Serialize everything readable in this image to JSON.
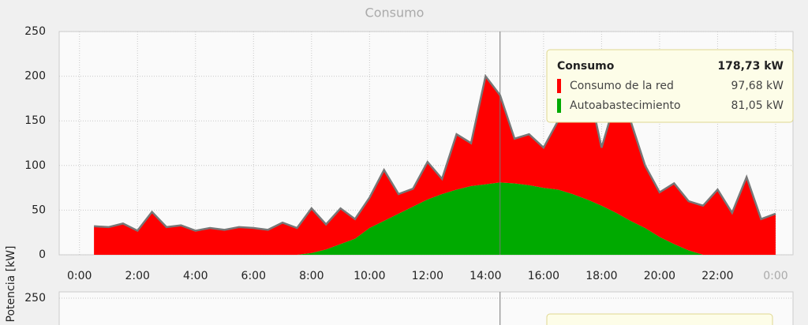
{
  "chart_data": {
    "type": "stacked_area",
    "title": "Consumo",
    "y_label": "Potencia [kW]",
    "x": [
      0.5,
      1,
      1.5,
      2,
      2.5,
      3,
      3.5,
      4,
      4.5,
      5,
      5.5,
      6,
      6.5,
      7,
      7.5,
      8,
      8.5,
      9,
      9.5,
      10,
      10.5,
      11,
      11.5,
      12,
      12.5,
      13,
      13.5,
      14,
      14.5,
      15,
      15.5,
      16,
      16.5,
      17,
      17.5,
      18,
      18.5,
      19,
      19.5,
      20,
      20.5,
      21,
      21.5,
      22,
      22.5,
      23,
      23.5,
      24
    ],
    "series": [
      {
        "name": "Autoabastecimiento",
        "color": "#00aa00",
        "values": [
          0,
          0,
          0,
          0,
          0,
          0,
          0,
          0,
          0,
          0,
          0,
          0,
          0,
          0,
          0,
          2,
          6,
          12,
          18,
          30,
          38,
          46,
          54,
          62,
          68,
          73,
          77,
          79,
          81.05,
          80,
          78,
          75,
          73,
          68,
          62,
          55,
          47,
          38,
          30,
          20,
          12,
          5,
          0,
          0,
          0,
          0,
          0,
          0
        ]
      },
      {
        "name": "Consumo de la red",
        "color": "#ff0000",
        "values": [
          32,
          31,
          35,
          27,
          48,
          31,
          33,
          27,
          30,
          28,
          31,
          30,
          28,
          36,
          30,
          50,
          28,
          40,
          22,
          34,
          57,
          22,
          20,
          42,
          17,
          62,
          48,
          121,
          97.68,
          50,
          57,
          45,
          77,
          117,
          133,
          65,
          128,
          112,
          70,
          50,
          68,
          55,
          55,
          73,
          47,
          87,
          40,
          46
        ]
      }
    ],
    "xlim": [
      -0.7,
      24.6
    ],
    "ylim": [
      0,
      250
    ],
    "xticks": [
      {
        "value": 0,
        "label": "0:00"
      },
      {
        "value": 2,
        "label": "2:00"
      },
      {
        "value": 4,
        "label": "4:00"
      },
      {
        "value": 6,
        "label": "6:00"
      },
      {
        "value": 8,
        "label": "8:00"
      },
      {
        "value": 10,
        "label": "10:00"
      },
      {
        "value": 12,
        "label": "12:00"
      },
      {
        "value": 14,
        "label": "14:00"
      },
      {
        "value": 16,
        "label": "16:00"
      },
      {
        "value": 18,
        "label": "18:00"
      },
      {
        "value": 20,
        "label": "20:00"
      },
      {
        "value": 22,
        "label": "22:00"
      },
      {
        "value": 24,
        "label": "0:00"
      }
    ],
    "yticks": [
      0,
      50,
      100,
      150,
      200,
      250
    ],
    "grid": true,
    "tooltip": {
      "x": 14.5,
      "title": "Consumo",
      "total": "178,73 kW",
      "values": [
        "81,05 kW",
        "97,68 kW"
      ]
    },
    "lower_chart": {
      "yticks": [
        250
      ]
    }
  }
}
